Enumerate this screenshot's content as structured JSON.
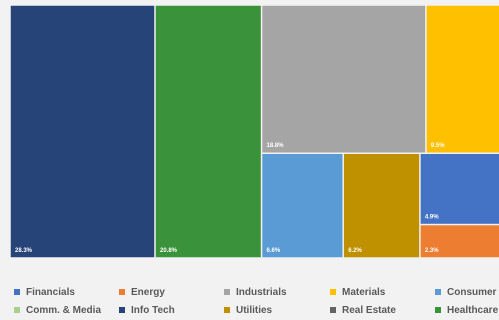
{
  "chart_data": {
    "type": "treemap",
    "title": "",
    "series": [
      {
        "name": "Info Tech",
        "value": 28.3,
        "label": "28.3%",
        "color": "#264478"
      },
      {
        "name": "Healthcare",
        "value": 20.8,
        "label": "20.8%",
        "color": "#3a923b"
      },
      {
        "name": "Industrials",
        "value": 18.8,
        "label": "18.8%",
        "color": "#a5a5a5"
      },
      {
        "name": "Materials",
        "value": 9.5,
        "label": "9.5%",
        "color": "#ffc000"
      },
      {
        "name": "Consumer",
        "value": 6.6,
        "label": "6.6%",
        "color": "#5b9bd5"
      },
      {
        "name": "Utilities",
        "value": 6.2,
        "label": "6.2%",
        "color": "#bf9000"
      },
      {
        "name": "Financials",
        "value": 4.9,
        "label": "4.9%",
        "color": "#4472c4"
      },
      {
        "name": "Energy",
        "value": 2.3,
        "label": "2.3%",
        "color": "#ed7d31"
      }
    ],
    "legend": {
      "placement": "bottom",
      "entries": [
        {
          "label": "Financials",
          "color": "#4472c4"
        },
        {
          "label": "Energy",
          "color": "#ed7d31"
        },
        {
          "label": "Industrials",
          "color": "#a5a5a5"
        },
        {
          "label": "Materials",
          "color": "#ffc000"
        },
        {
          "label": "Consumer",
          "color": "#5b9bd5"
        },
        {
          "label": "Comm. & Media",
          "color": "#a9d18e"
        },
        {
          "label": "Info Tech",
          "color": "#264478"
        },
        {
          "label": "Utilities",
          "color": "#bf9000"
        },
        {
          "label": "Real Estate",
          "color": "#636363"
        },
        {
          "label": "Healthcare",
          "color": "#3a923b"
        }
      ]
    }
  }
}
